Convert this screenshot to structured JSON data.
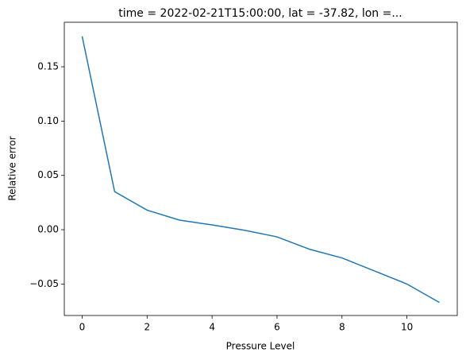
{
  "chart_data": {
    "type": "line",
    "title": "time = 2022-02-21T15:00:00, lat = -37.82, lon =...",
    "x_label": "Pressure Level",
    "y_label": "Relative error",
    "x": [
      0,
      1,
      2,
      3,
      4,
      5,
      6,
      7,
      8,
      9,
      10,
      11
    ],
    "series": [
      {
        "color": "#1f77b4",
        "values": [
          0.178,
          0.035,
          0.018,
          0.0088,
          0.0044,
          -0.0005,
          -0.0066,
          -0.018,
          -0.026,
          -0.038,
          -0.05,
          -0.067
        ]
      }
    ],
    "xlim": [
      -0.55,
      11.55
    ],
    "xticks": [
      0,
      2,
      4,
      6,
      8,
      10
    ],
    "ylim": [
      -0.079,
      0.191
    ],
    "yticks": [
      {
        "value": -0.05,
        "label": "−0.05"
      },
      {
        "value": 0,
        "label": "0.00"
      },
      {
        "value": 0.05,
        "label": "0.05"
      },
      {
        "value": 0.1,
        "label": "0.10"
      },
      {
        "value": 0.15,
        "label": "0.15"
      }
    ],
    "grid": false
  }
}
